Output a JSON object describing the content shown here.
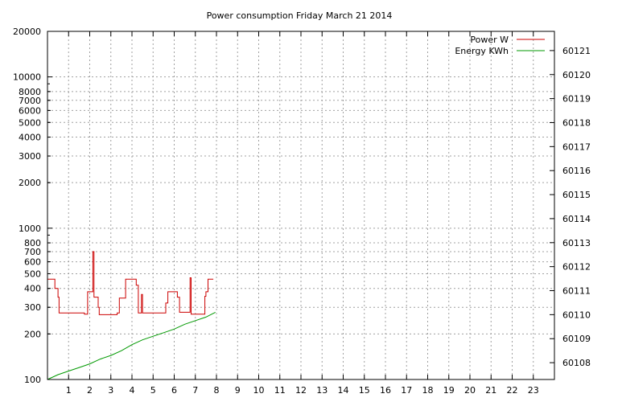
{
  "chart_data": {
    "type": "line",
    "title": "Power consumption Friday March 21 2014",
    "xlabel": "",
    "ylabel": "",
    "y2label": "",
    "grid": true,
    "legend_position": "top-right",
    "x_range": [
      0,
      24
    ],
    "x_ticks": [
      1,
      2,
      3,
      4,
      5,
      6,
      7,
      8,
      9,
      10,
      11,
      12,
      13,
      14,
      15,
      16,
      17,
      18,
      19,
      20,
      21,
      22,
      23
    ],
    "y_scale": "log",
    "y_range": [
      100,
      20000
    ],
    "y_major_ticks": [
      100,
      1000,
      10000
    ],
    "y_labeled_ticks": [
      100,
      200,
      300,
      400,
      500,
      600,
      700,
      800,
      1000,
      2000,
      3000,
      4000,
      5000,
      6000,
      7000,
      8000,
      10000,
      20000
    ],
    "y2_range": [
      60107.3,
      60121.8
    ],
    "y2_ticks": [
      60108,
      60109,
      60110,
      60111,
      60112,
      60113,
      60114,
      60115,
      60116,
      60117,
      60118,
      60119,
      60120,
      60121
    ],
    "series": [
      {
        "name": "Power W",
        "axis": "y",
        "color": "#cc0000",
        "points": [
          [
            0.0,
            460
          ],
          [
            0.35,
            460
          ],
          [
            0.35,
            400
          ],
          [
            0.5,
            400
          ],
          [
            0.5,
            350
          ],
          [
            0.55,
            350
          ],
          [
            0.55,
            275
          ],
          [
            1.75,
            275
          ],
          [
            1.75,
            270
          ],
          [
            1.9,
            270
          ],
          [
            1.9,
            380
          ],
          [
            2.15,
            380
          ],
          [
            2.15,
            700
          ],
          [
            2.2,
            700
          ],
          [
            2.2,
            350
          ],
          [
            2.4,
            350
          ],
          [
            2.4,
            300
          ],
          [
            2.45,
            300
          ],
          [
            2.45,
            268
          ],
          [
            3.3,
            268
          ],
          [
            3.3,
            275
          ],
          [
            3.4,
            275
          ],
          [
            3.4,
            345
          ],
          [
            3.7,
            345
          ],
          [
            3.7,
            460
          ],
          [
            4.2,
            460
          ],
          [
            4.2,
            420
          ],
          [
            4.3,
            420
          ],
          [
            4.3,
            275
          ],
          [
            4.45,
            275
          ],
          [
            4.45,
            365
          ],
          [
            4.5,
            365
          ],
          [
            4.5,
            275
          ],
          [
            5.6,
            275
          ],
          [
            5.6,
            320
          ],
          [
            5.7,
            320
          ],
          [
            5.7,
            380
          ],
          [
            6.15,
            380
          ],
          [
            6.15,
            350
          ],
          [
            6.25,
            350
          ],
          [
            6.25,
            278
          ],
          [
            6.75,
            278
          ],
          [
            6.75,
            470
          ],
          [
            6.8,
            470
          ],
          [
            6.8,
            270
          ],
          [
            7.45,
            270
          ],
          [
            7.45,
            355
          ],
          [
            7.5,
            355
          ],
          [
            7.5,
            380
          ],
          [
            7.6,
            380
          ],
          [
            7.6,
            460
          ],
          [
            7.85,
            460
          ]
        ]
      },
      {
        "name": "Energy KWh",
        "axis": "y2",
        "color": "#009900",
        "points": [
          [
            0.0,
            60107.3
          ],
          [
            0.5,
            60107.5
          ],
          [
            1.0,
            60107.65
          ],
          [
            1.5,
            60107.8
          ],
          [
            2.0,
            60107.95
          ],
          [
            2.5,
            60108.15
          ],
          [
            3.0,
            60108.3
          ],
          [
            3.5,
            60108.5
          ],
          [
            4.0,
            60108.75
          ],
          [
            4.5,
            60108.95
          ],
          [
            5.0,
            60109.1
          ],
          [
            5.5,
            60109.25
          ],
          [
            6.0,
            60109.4
          ],
          [
            6.5,
            60109.6
          ],
          [
            7.0,
            60109.75
          ],
          [
            7.5,
            60109.9
          ],
          [
            7.95,
            60110.1
          ]
        ]
      }
    ]
  }
}
